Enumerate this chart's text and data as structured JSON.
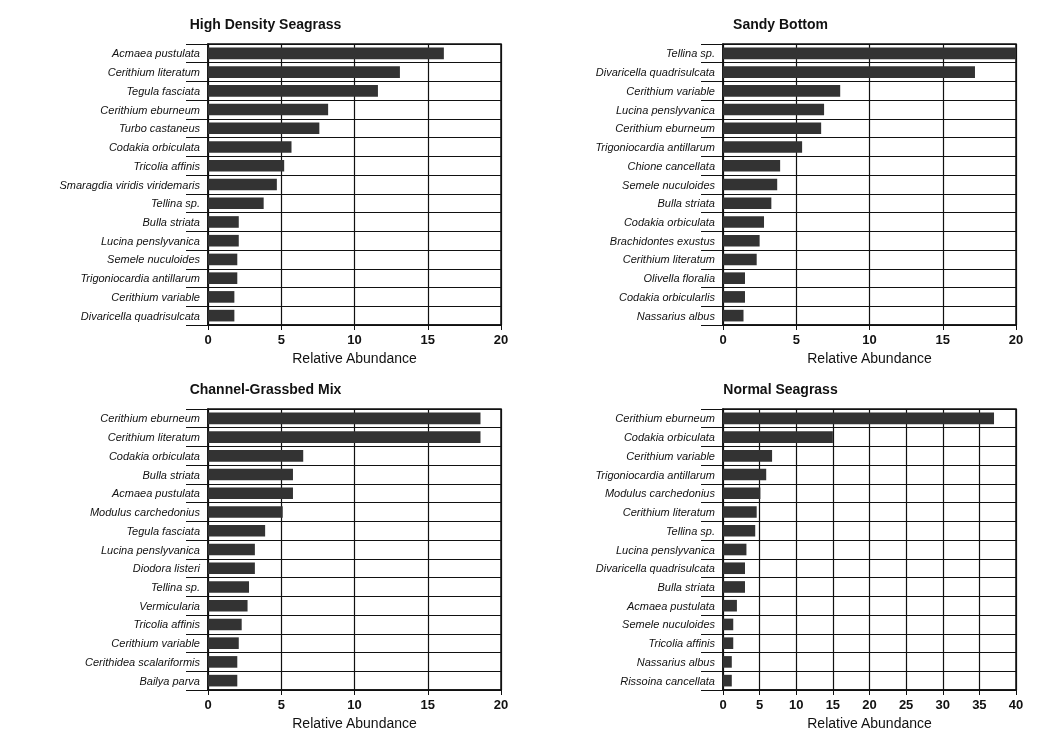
{
  "chart_data": [
    {
      "type": "bar",
      "orientation": "horizontal",
      "title": "High Density Seagrass",
      "xlabel": "Relative Abundance",
      "categories": [
        "Acmaea pustulata",
        "Cerithium literatum",
        "Tegula fasciata",
        "Cerithium eburneum",
        "Turbo castaneus",
        "Codakia orbiculata",
        "Tricolia affinis",
        "Smaragdia viridis viridemaris",
        "Tellina sp.",
        "Bulla striata",
        "Lucina penslyvanica",
        "Semele nuculoides",
        "Trigoniocardia antillarum",
        "Cerithium variable",
        "Divaricella quadrisulcata"
      ],
      "values": [
        16.1,
        13.1,
        11.6,
        8.2,
        7.6,
        5.7,
        5.2,
        4.7,
        3.8,
        2.1,
        2.1,
        2.0,
        2.0,
        1.8,
        1.8
      ],
      "color": "#333333",
      "xlim": [
        0,
        20
      ],
      "xticks": [
        0,
        5,
        10,
        15,
        20
      ],
      "grid": true
    },
    {
      "type": "bar",
      "orientation": "horizontal",
      "title": "Sandy Bottom",
      "xlabel": "Relative Abundance",
      "categories": [
        "Tellina sp.",
        "Divaricella quadrisulcata",
        "Cerithium variable",
        "Lucina penslyvanica",
        "Cerithium eburneum",
        "Trigoniocardia antillarum",
        "Chione cancellata",
        "Semele nuculoides",
        "Bulla striata",
        "Codakia orbiculata",
        "Brachidontes exustus",
        "Cerithium literatum",
        "Olivella floralia",
        "Codakia orbicularlis",
        "Nassarius albus"
      ],
      "values": [
        20,
        17.2,
        8.0,
        6.9,
        6.7,
        5.4,
        3.9,
        3.7,
        3.3,
        2.8,
        2.5,
        2.3,
        1.5,
        1.5,
        1.4
      ],
      "color": "#333333",
      "xlim": [
        0,
        20
      ],
      "xticks": [
        0,
        5,
        10,
        15,
        20
      ],
      "grid": true
    },
    {
      "type": "bar",
      "orientation": "horizontal",
      "title": "Channel-Grassbed Mix",
      "xlabel": "Relative Abundance",
      "categories": [
        "Cerithium eburneum",
        "Cerithium literatum",
        "Codakia orbiculata",
        "Bulla striata",
        "Acmaea pustulata",
        "Modulus carchedonius",
        "Tegula fasciata",
        "Lucina penslyvanica",
        "Diodora listeri",
        "Tellina sp.",
        "Vermicularia",
        "Tricolia affinis",
        "Cerithium variable",
        "Cerithidea scalariformis",
        "Bailya parva"
      ],
      "values": [
        18.6,
        18.6,
        6.5,
        5.8,
        5.8,
        5.1,
        3.9,
        3.2,
        3.2,
        2.8,
        2.7,
        2.3,
        2.1,
        2.0,
        2.0
      ],
      "color": "#333333",
      "xlim": [
        0,
        20
      ],
      "xticks": [
        0,
        5,
        10,
        15,
        20
      ],
      "grid": true
    },
    {
      "type": "bar",
      "orientation": "horizontal",
      "title": "Normal Seagrass",
      "xlabel": "Relative Abundance",
      "categories": [
        "Cerithium eburneum",
        "Codakia orbiculata",
        "Cerithium variable",
        "Trigoniocardia antillarum",
        "Modulus carchedonius",
        "Cerithium literatum",
        "Tellina sp.",
        "Lucina penslyvanica",
        "Divaricella quadrisulcata",
        "Bulla striata",
        "Acmaea pustulata",
        "Semele nuculoides",
        "Tricolia affinis",
        "Nassarius albus",
        "Rissoina cancellata"
      ],
      "values": [
        37,
        15,
        6.7,
        5.9,
        5.1,
        4.6,
        4.4,
        3.2,
        3.0,
        3.0,
        1.9,
        1.4,
        1.4,
        1.2,
        1.2
      ],
      "color": "#333333",
      "xlim": [
        0,
        40
      ],
      "xticks": [
        0,
        5,
        10,
        15,
        20,
        25,
        30,
        35,
        40
      ],
      "grid": true
    }
  ]
}
